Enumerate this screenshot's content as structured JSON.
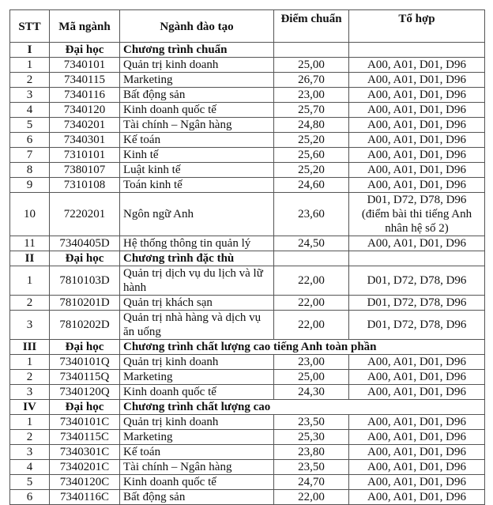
{
  "headers": [
    "STT",
    "Mã ngành",
    "Ngành đào tạo",
    "Điểm chuẩn",
    "Tổ hợp"
  ],
  "sections": [
    {
      "stt": "I",
      "level": "Đại học",
      "program": "Chương trình chuẩn",
      "span": false,
      "rows": [
        [
          "1",
          "7340101",
          "Quản trị kinh doanh",
          "25,00",
          "A00, A01, D01, D96"
        ],
        [
          "2",
          "7340115",
          "Marketing",
          "26,70",
          "A00, A01, D01, D96"
        ],
        [
          "3",
          "7340116",
          "Bất động sản",
          "23,00",
          "A00, A01, D01, D96"
        ],
        [
          "4",
          "7340120",
          "Kinh doanh quốc tế",
          "25,70",
          "A00, A01, D01, D96"
        ],
        [
          "5",
          "7340201",
          "Tài chính – Ngân hàng",
          "24,80",
          "A00, A01, D01, D96"
        ],
        [
          "6",
          "7340301",
          "Kế toán",
          "25,20",
          "A00, A01, D01, D96"
        ],
        [
          "7",
          "7310101",
          "Kinh tế",
          "25,60",
          "A00, A01, D01, D96"
        ],
        [
          "8",
          "7380107",
          "Luật kinh tế",
          "25,20",
          "A00, A01, D01, D96"
        ],
        [
          "9",
          "7310108",
          "Toán kinh tế",
          "24,60",
          "A00, A01, D01, D96"
        ],
        [
          "10",
          "7220201",
          "Ngôn ngữ Anh",
          "23,60",
          "D01, D72, D78, D96 (điểm bài thi tiếng Anh nhân hệ số 2)"
        ],
        [
          "11",
          "7340405D",
          "Hệ thống thông tin quản lý",
          "24,50",
          "A00, A01, D01, D96"
        ]
      ]
    },
    {
      "stt": "II",
      "level": "Đại học",
      "program": "Chương trình đặc thù",
      "span": false,
      "rows": [
        [
          "1",
          "7810103D",
          "Quản trị dịch vụ du lịch và lữ hành",
          "22,00",
          "D01, D72, D78, D96"
        ],
        [
          "2",
          "7810201D",
          "Quản trị khách sạn",
          "22,00",
          "D01, D72, D78, D96"
        ],
        [
          "3",
          "7810202D",
          "Quản trị nhà hàng và dịch vụ ăn uống",
          "22,00",
          "D01, D72, D78, D96"
        ]
      ]
    },
    {
      "stt": "III",
      "level": "Đại học",
      "program": "Chương trình chất lượng cao tiếng Anh toàn phần",
      "span": true,
      "rows": [
        [
          "1",
          "7340101Q",
          "Quản trị kinh doanh",
          "23,00",
          "A00, A01, D01, D96"
        ],
        [
          "2",
          "7340115Q",
          "Marketing",
          "25,00",
          "A00, A01, D01, D96"
        ],
        [
          "3",
          "7340120Q",
          "Kinh doanh quốc tế",
          "24,30",
          "A00, A01, D01, D96"
        ]
      ]
    },
    {
      "stt": "IV",
      "level": "Đại học",
      "program": "Chương trình chất lượng cao",
      "span": true,
      "rows": [
        [
          "1",
          "7340101C",
          "Quản trị kinh doanh",
          "23,50",
          "A00, A01, D01, D96"
        ],
        [
          "2",
          "7340115C",
          "Marketing",
          "25,30",
          "A00, A01, D01, D96"
        ],
        [
          "3",
          "7340301C",
          "Kế toán",
          "23,80",
          "A00, A01, D01, D96"
        ],
        [
          "4",
          "7340201C",
          "Tài chính – Ngân hàng",
          "23,50",
          "A00, A01, D01, D96"
        ],
        [
          "5",
          "7340120C",
          "Kinh doanh quốc tế",
          "24,70",
          "A00, A01, D01, D96"
        ],
        [
          "6",
          "7340116C",
          "Bất động sản",
          "22,00",
          "A00, A01, D01, D96"
        ]
      ]
    }
  ]
}
